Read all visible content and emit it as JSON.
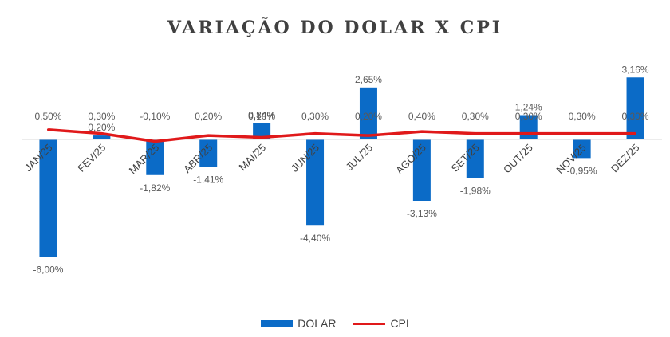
{
  "colors": {
    "dolar": "#0B6BC7",
    "cpi": "#E0191A",
    "axis": "#D9D9D9"
  },
  "chart_data": {
    "type": "bar",
    "title": "VARIAÇÃO DO DOLAR X CPI",
    "categories": [
      "JAN/25",
      "FEV/25",
      "MAR/25",
      "ABR/25",
      "MAI/25",
      "JUN/25",
      "JUL/25",
      "AGO/25",
      "SET/25",
      "OUT/25",
      "NOV/25",
      "DEZ/25"
    ],
    "series": [
      {
        "name": "DOLAR",
        "kind": "bar",
        "values": [
          -6.0,
          0.2,
          -1.82,
          -1.41,
          0.84,
          -4.4,
          2.65,
          -3.13,
          -1.98,
          1.24,
          -0.95,
          3.16
        ],
        "labels": [
          "-6,00%",
          "0,20%",
          "-1,82%",
          "-1,41%",
          "0,84%",
          "-4,40%",
          "2,65%",
          "-3,13%",
          "-1,98%",
          "1,24%",
          "-0,95%",
          "3,16%"
        ]
      },
      {
        "name": "CPI",
        "kind": "line",
        "values": [
          0.5,
          0.3,
          -0.1,
          0.2,
          0.1,
          0.3,
          0.2,
          0.4,
          0.3,
          0.3,
          0.3,
          0.3
        ],
        "labels": [
          "0,50%",
          "0,30%",
          "-0,10%",
          "0,20%",
          "0,10%",
          "0,30%",
          "0,20%",
          "0,40%",
          "0,30%",
          "0,30%",
          "0,30%",
          "0,30%"
        ]
      }
    ],
    "legend_position": "bottom",
    "grid": false
  }
}
